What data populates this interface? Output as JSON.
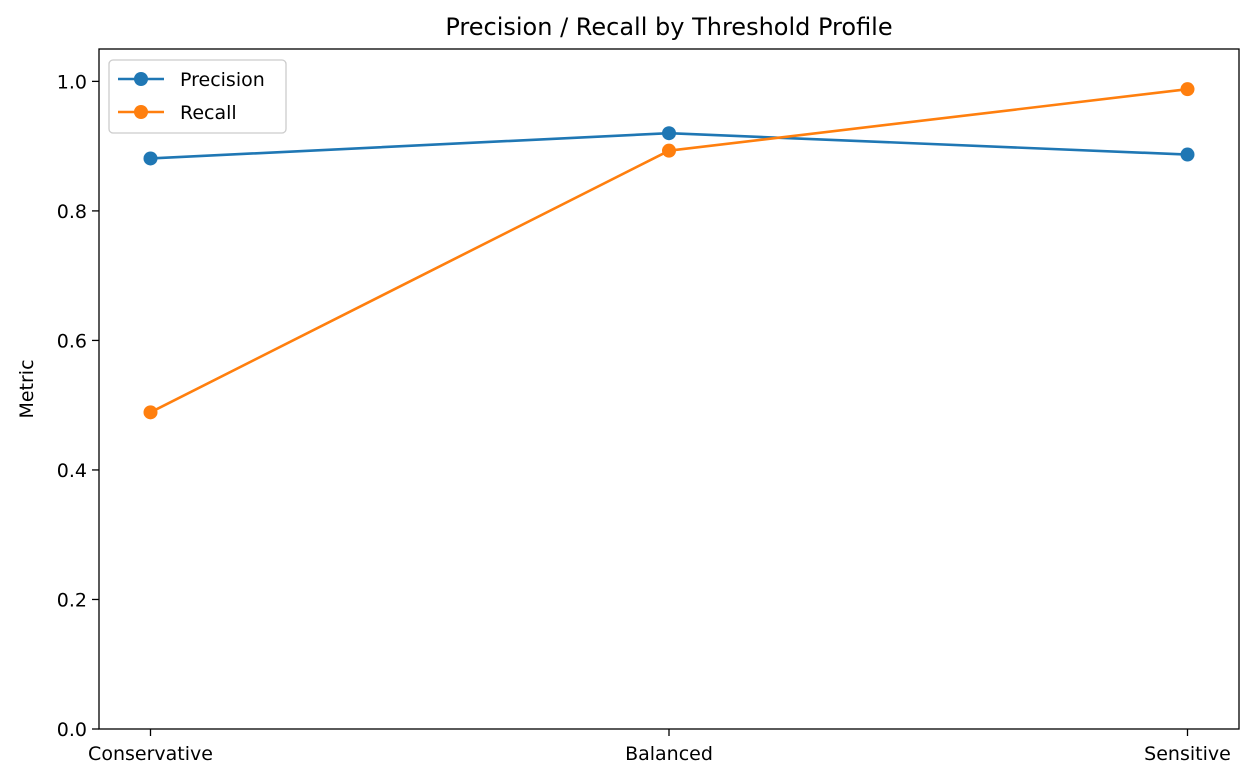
{
  "chart_data": {
    "type": "line",
    "title": "Precision / Recall by Threshold Profile",
    "xlabel": "",
    "ylabel": "Metric",
    "categories": [
      "Conservative",
      "Balanced",
      "Sensitive"
    ],
    "series": [
      {
        "name": "Precision",
        "values": [
          0.881,
          0.92,
          0.887
        ],
        "color": "#1f77b4"
      },
      {
        "name": "Recall",
        "values": [
          0.489,
          0.893,
          0.988
        ],
        "color": "#ff7f0e"
      }
    ],
    "ylim": [
      0,
      1.05
    ],
    "yticks": [
      "0.0",
      "0.2",
      "0.4",
      "0.6",
      "0.8",
      "1.0"
    ],
    "grid": false,
    "legend_position": "upper left",
    "marker": "circle"
  }
}
